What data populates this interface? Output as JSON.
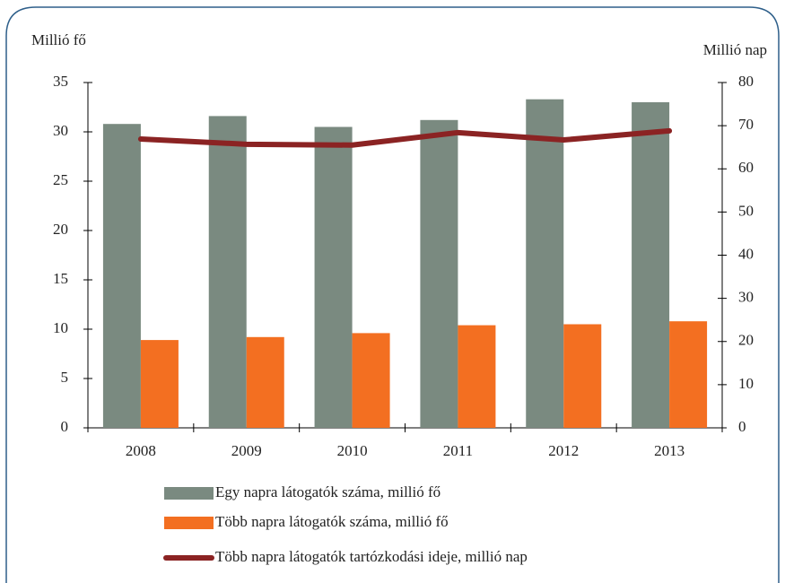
{
  "chart_data": {
    "type": "bar",
    "y_label": "Millió fő",
    "y2_label": "Millió nap",
    "categories": [
      "2008",
      "2009",
      "2010",
      "2011",
      "2012",
      "2013"
    ],
    "series": [
      {
        "name": "Egy napra látogatók száma, millió fő",
        "type": "bar",
        "color": "#7a8a80",
        "values": [
          30.8,
          31.6,
          30.5,
          31.2,
          33.3,
          33.0
        ]
      },
      {
        "name": "Több napra látogatók száma, millió fő",
        "type": "bar",
        "color": "#f36f21",
        "values": [
          8.9,
          9.2,
          9.6,
          10.4,
          10.5,
          10.8
        ]
      },
      {
        "name": "Több napra látogatók tartózkodási ideje, millió nap",
        "type": "line",
        "axis": "y2",
        "color": "#8b2323",
        "values": [
          66.9,
          65.7,
          65.5,
          68.4,
          66.7,
          68.8
        ]
      }
    ],
    "ylim": [
      0,
      35
    ],
    "yticks": [
      0,
      5,
      10,
      15,
      20,
      25,
      30,
      35
    ],
    "y2lim": [
      0,
      80
    ],
    "y2ticks": [
      0,
      10,
      20,
      30,
      40,
      50,
      60,
      70,
      80
    ]
  }
}
